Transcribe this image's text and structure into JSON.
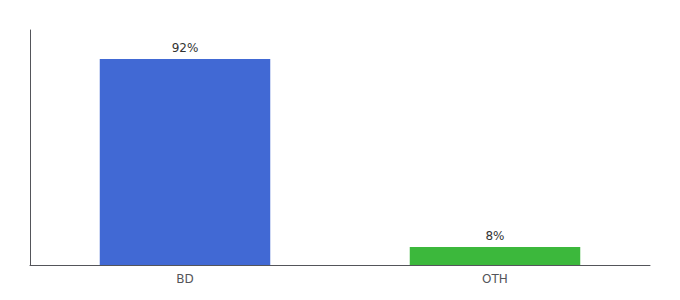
{
  "chart_data": {
    "type": "bar",
    "categories": [
      "BD",
      "OTH"
    ],
    "values": [
      92,
      8
    ],
    "value_labels": [
      "92%",
      "8%"
    ],
    "colors": [
      "#4169d4",
      "#3cb83c"
    ],
    "ylim": [
      0,
      105
    ],
    "data_labels": true,
    "tick_labels": "x",
    "grid": false
  }
}
